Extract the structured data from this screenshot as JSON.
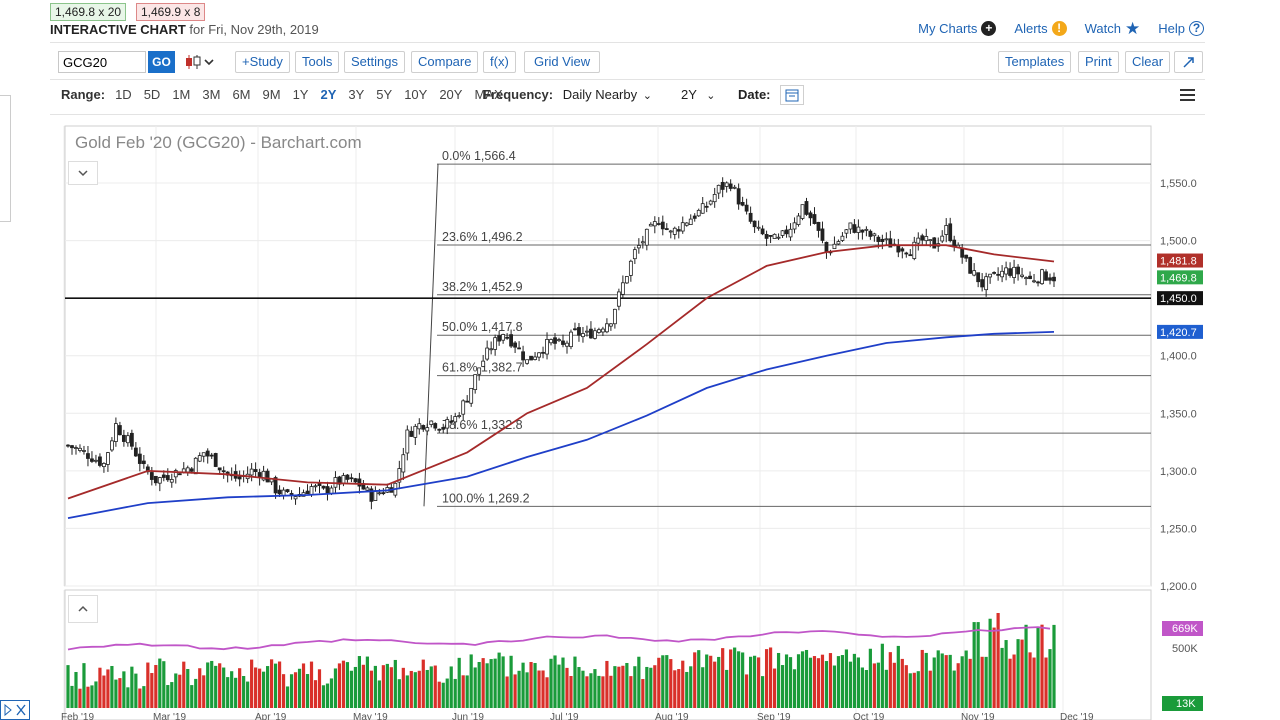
{
  "quotes": {
    "bid": "1,469.8 x 20",
    "ask": "1,469.9 x 8"
  },
  "header": {
    "title": "INTERACTIVE CHART",
    "date_text": "for Fri, Nov 29th, 2019"
  },
  "top_links": {
    "my_charts": "My Charts",
    "alerts": "Alerts",
    "watch": "Watch",
    "help": "Help"
  },
  "toolbar": {
    "symbol_value": "GCG20",
    "go": "GO",
    "study": "+Study",
    "tools": "Tools",
    "settings": "Settings",
    "compare": "Compare",
    "fx": "f(x)",
    "grid_view": "Grid View",
    "templates": "Templates",
    "print": "Print",
    "clear": "Clear"
  },
  "range": {
    "label": "Range:",
    "options": [
      "1D",
      "5D",
      "1M",
      "3M",
      "6M",
      "9M",
      "1Y",
      "2Y",
      "3Y",
      "5Y",
      "10Y",
      "20Y",
      "MAX"
    ],
    "selected": "2Y"
  },
  "frequency": {
    "label": "Frequency:",
    "value": "Daily Nearby",
    "period": "2Y",
    "date_label": "Date:"
  },
  "colors": {
    "accent": "#1f64b4",
    "up": "#1a9b3a",
    "down": "#d9302a",
    "ma50": "#a52a2a",
    "ma200": "#1f3fc8",
    "volume_ma": "#c056c8"
  },
  "chart_data": {
    "type": "candlestick",
    "title": "Gold Feb '20 (GCG20) - Barchart.com",
    "x_labels": [
      "Feb '19",
      "Mar '19",
      "Apr '19",
      "May '19",
      "Jun '19",
      "Jul '19",
      "Aug '19",
      "Sep '19",
      "Oct '19",
      "Nov '19",
      "Dec '19"
    ],
    "y_ticks": [
      "1,550.0",
      "1,500.0",
      "1,450.0",
      "1,400.0",
      "1,350.0",
      "1,300.0",
      "1,250.0",
      "1,200.0"
    ],
    "ylim": [
      1200,
      1580
    ],
    "fib_levels": [
      {
        "label": "0.0% 1,566.4",
        "value": 1566.4
      },
      {
        "label": "23.6% 1,496.2",
        "value": 1496.2
      },
      {
        "label": "38.2% 1,452.9",
        "value": 1452.9
      },
      {
        "label": "50.0% 1,417.8",
        "value": 1417.8
      },
      {
        "label": "61.8% 1,382.7",
        "value": 1382.7
      },
      {
        "label": "78.6% 1,332.8",
        "value": 1332.8
      },
      {
        "label": "100.0% 1,269.2",
        "value": 1269.2
      }
    ],
    "horizontal_line": 1450.0,
    "markers": [
      {
        "label": "1,481.8",
        "value": 1481.8,
        "color": "#b0302a"
      },
      {
        "label": "1,469.8",
        "value": 1469.8,
        "color": "#2fa84a"
      },
      {
        "label": "1,450.0",
        "value": 1450.0,
        "color": "#111111"
      },
      {
        "label": "1,420.7",
        "value": 1420.7,
        "color": "#1f5fd0"
      }
    ],
    "close_path": [
      [
        0,
        1322
      ],
      [
        3,
        1318
      ],
      [
        6,
        1312
      ],
      [
        9,
        1306
      ],
      [
        12,
        1340
      ],
      [
        14,
        1330
      ],
      [
        16,
        1322
      ],
      [
        19,
        1302
      ],
      [
        22,
        1292
      ],
      [
        25,
        1296
      ],
      [
        28,
        1300
      ],
      [
        31,
        1304
      ],
      [
        34,
        1316
      ],
      [
        37,
        1308
      ],
      [
        40,
        1296
      ],
      [
        43,
        1293
      ],
      [
        46,
        1300
      ],
      [
        49,
        1298
      ],
      [
        52,
        1284
      ],
      [
        55,
        1278
      ],
      [
        58,
        1280
      ],
      [
        61,
        1286
      ],
      [
        64,
        1282
      ],
      [
        67,
        1290
      ],
      [
        70,
        1292
      ],
      [
        73,
        1288
      ],
      [
        76,
        1278
      ],
      [
        79,
        1283
      ],
      [
        82,
        1288
      ],
      [
        85,
        1332
      ],
      [
        88,
        1340
      ],
      [
        91,
        1343
      ],
      [
        94,
        1338
      ],
      [
        97,
        1346
      ],
      [
        100,
        1364
      ],
      [
        103,
        1390
      ],
      [
        106,
        1408
      ],
      [
        109,
        1420
      ],
      [
        112,
        1410
      ],
      [
        115,
        1395
      ],
      [
        118,
        1405
      ],
      [
        121,
        1412
      ],
      [
        124,
        1408
      ],
      [
        127,
        1420
      ],
      [
        130,
        1418
      ],
      [
        133,
        1424
      ],
      [
        136,
        1432
      ],
      [
        139,
        1462
      ],
      [
        142,
        1490
      ],
      [
        145,
        1505
      ],
      [
        148,
        1518
      ],
      [
        151,
        1506
      ],
      [
        154,
        1515
      ],
      [
        157,
        1522
      ],
      [
        160,
        1530
      ],
      [
        163,
        1545
      ],
      [
        166,
        1550
      ],
      [
        169,
        1528
      ],
      [
        172,
        1510
      ],
      [
        175,
        1502
      ],
      [
        178,
        1500
      ],
      [
        181,
        1512
      ],
      [
        184,
        1530
      ],
      [
        187,
        1515
      ],
      [
        190,
        1490
      ],
      [
        193,
        1500
      ],
      [
        196,
        1512
      ],
      [
        199,
        1508
      ],
      [
        202,
        1502
      ],
      [
        205,
        1498
      ],
      [
        208,
        1495
      ],
      [
        211,
        1492
      ],
      [
        214,
        1500
      ],
      [
        217,
        1496
      ],
      [
        220,
        1510
      ],
      [
        223,
        1492
      ],
      [
        226,
        1475
      ],
      [
        229,
        1462
      ],
      [
        232,
        1468
      ],
      [
        235,
        1474
      ],
      [
        238,
        1472
      ],
      [
        241,
        1466
      ],
      [
        244,
        1470
      ],
      [
        247,
        1468
      ]
    ],
    "ma50_path": [
      [
        0,
        1276
      ],
      [
        20,
        1300
      ],
      [
        40,
        1297
      ],
      [
        60,
        1290
      ],
      [
        80,
        1288
      ],
      [
        100,
        1316
      ],
      [
        115,
        1350
      ],
      [
        130,
        1372
      ],
      [
        145,
        1410
      ],
      [
        160,
        1450
      ],
      [
        175,
        1478
      ],
      [
        190,
        1490
      ],
      [
        205,
        1496
      ],
      [
        220,
        1496
      ],
      [
        232,
        1488
      ],
      [
        247,
        1481.8
      ]
    ],
    "ma200_path": [
      [
        0,
        1259
      ],
      [
        20,
        1272
      ],
      [
        40,
        1277
      ],
      [
        60,
        1279
      ],
      [
        80,
        1283
      ],
      [
        100,
        1295
      ],
      [
        115,
        1312
      ],
      [
        130,
        1327
      ],
      [
        145,
        1348
      ],
      [
        160,
        1372
      ],
      [
        175,
        1388
      ],
      [
        190,
        1400
      ],
      [
        205,
        1411
      ],
      [
        220,
        1416
      ],
      [
        232,
        1419
      ],
      [
        247,
        1420.7
      ]
    ],
    "volume": {
      "ticks": [
        "500K"
      ],
      "labels": [
        "669K",
        "13K"
      ]
    }
  }
}
